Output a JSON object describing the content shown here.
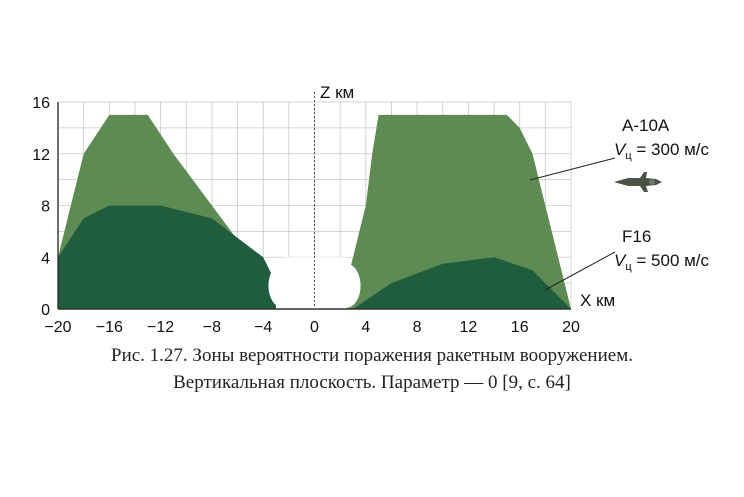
{
  "chart_data": {
    "type": "area",
    "xlabel": "X км",
    "ylabel": "Z км",
    "x_ticks": [
      "−20",
      "−16",
      "−12",
      "−8",
      "−4",
      "0",
      "4",
      "8",
      "12",
      "16",
      "20"
    ],
    "y_ticks": [
      "0",
      "4",
      "8",
      "12",
      "16"
    ],
    "xlim": [
      -20,
      20
    ],
    "ylim": [
      0,
      16
    ],
    "grid": true,
    "series": [
      {
        "name": "A-10A",
        "label_line1": "A-10A",
        "speed_prefix": "V",
        "speed_sub": "ц",
        "speed_value": " = 300 м/с",
        "color": "#5e8a53",
        "left_region": [
          [
            -20,
            0
          ],
          [
            -20,
            4
          ],
          [
            -19,
            8
          ],
          [
            -18,
            12
          ],
          [
            -16,
            15
          ],
          [
            -13,
            15
          ],
          [
            -11,
            12
          ],
          [
            -8,
            8
          ],
          [
            -5,
            4
          ],
          [
            -3,
            0
          ]
        ],
        "right_region": [
          [
            2,
            0
          ],
          [
            3,
            4
          ],
          [
            4,
            8
          ],
          [
            4.5,
            12
          ],
          [
            5,
            15
          ],
          [
            15,
            15
          ],
          [
            16,
            14
          ],
          [
            17,
            12
          ],
          [
            18,
            8
          ],
          [
            19,
            4
          ],
          [
            20,
            0
          ]
        ]
      },
      {
        "name": "F16",
        "label_line1": "F16",
        "speed_prefix": "V",
        "speed_sub": "ц",
        "speed_value": " = 500 м/с",
        "color": "#1f5d3d",
        "left_region": [
          [
            -20,
            0
          ],
          [
            -20,
            4
          ],
          [
            -18,
            7
          ],
          [
            -16,
            8
          ],
          [
            -12,
            8
          ],
          [
            -8,
            7
          ],
          [
            -4,
            4
          ],
          [
            -3,
            2
          ],
          [
            -3,
            0
          ]
        ],
        "right_region": [
          [
            3,
            0
          ],
          [
            6,
            2
          ],
          [
            10,
            3.5
          ],
          [
            14,
            4
          ],
          [
            17,
            3
          ],
          [
            19,
            1
          ],
          [
            20,
            0
          ]
        ]
      }
    ],
    "caption_line1": "Рис. 1.27. Зоны вероятности поражения ракетным вооружением.",
    "caption_line2": "Вертикальная плоскость. Параметр — 0 [9, с. 64]"
  }
}
